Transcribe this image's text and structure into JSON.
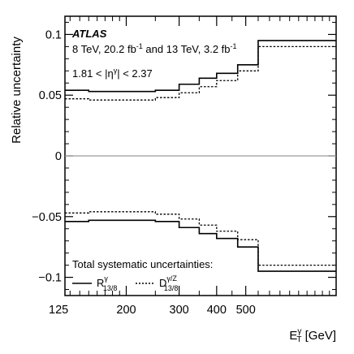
{
  "chart_data": {
    "type": "line",
    "title": "",
    "xlabel": "E_T^γ [GeV]",
    "ylabel": "Relative uncertainty",
    "x_scale": "log",
    "xlim": [
      125,
      1000
    ],
    "ylim": [
      -0.115,
      0.115
    ],
    "x_ticks": [
      125,
      200,
      300,
      400,
      500
    ],
    "y_ticks": [
      -0.1,
      -0.05,
      0,
      0.05,
      0.1
    ],
    "y_tick_labels": [
      "−0.1",
      "−0.05",
      "0",
      "0.05",
      "0.1"
    ],
    "grid": false,
    "bin_edges": [
      125,
      150,
      175,
      250,
      300,
      350,
      400,
      470,
      550,
      1000
    ],
    "series": [
      {
        "name": "R_13/8^γ",
        "style": "solid",
        "upper": [
          0.054,
          0.053,
          0.053,
          0.054,
          0.059,
          0.064,
          0.068,
          0.075,
          0.095
        ],
        "lower": [
          -0.054,
          -0.053,
          -0.053,
          -0.054,
          -0.059,
          -0.064,
          -0.068,
          -0.075,
          -0.095
        ]
      },
      {
        "name": "D_13/8^γ/Z",
        "style": "dotted",
        "upper": [
          0.047,
          0.046,
          0.046,
          0.048,
          0.052,
          0.057,
          0.062,
          0.07,
          0.09
        ],
        "lower": [
          -0.047,
          -0.046,
          -0.046,
          -0.048,
          -0.052,
          -0.057,
          -0.062,
          -0.069,
          -0.09
        ]
      }
    ],
    "annotations": {
      "experiment": "ATLAS",
      "energy_line": "8 TeV, 20.2 fb",
      "energy_sup1": "-1",
      "energy_mid": " and 13 TeV, 3.2 fb",
      "energy_sup2": "-1",
      "eta_range": "1.81 < |η^γ| < 2.37",
      "legend_header": "Total systematic uncertainties:"
    },
    "legend_position": "bottom-left",
    "colors": {
      "lines": "#000000",
      "zero_line": "#9a9a9a",
      "background": "#ffffff"
    }
  }
}
